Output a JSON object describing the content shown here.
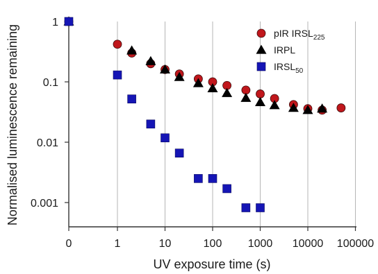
{
  "chart_data": {
    "type": "scatter",
    "xlabel": "UV exposure time (s)",
    "ylabel": "Normalised luminescence remaining",
    "x_scale": "log (with 0 shown at left edge)",
    "y_scale": "log",
    "xlim": [
      0,
      100000
    ],
    "ylim": [
      0.0001,
      1
    ],
    "x_tick_labels": [
      "0",
      "1",
      "10",
      "100",
      "1000",
      "10000",
      "100000"
    ],
    "y_tick_labels": [
      "1",
      "0.1",
      "0.01",
      "0.001"
    ],
    "grid": "vertical gridlines at x ticks",
    "legend_position": "top-right",
    "series": [
      {
        "name": "pIR IRSL225",
        "legend_main": "pIR IRSL",
        "legend_sub": "225",
        "marker": "circle",
        "color": "#c0171c",
        "points": [
          {
            "x": 0,
            "y": 1.0
          },
          {
            "x": 1,
            "y": 0.42
          },
          {
            "x": 2,
            "y": 0.3
          },
          {
            "x": 5,
            "y": 0.2
          },
          {
            "x": 10,
            "y": 0.16
          },
          {
            "x": 20,
            "y": 0.135
          },
          {
            "x": 50,
            "y": 0.112
          },
          {
            "x": 100,
            "y": 0.1
          },
          {
            "x": 200,
            "y": 0.087
          },
          {
            "x": 500,
            "y": 0.073
          },
          {
            "x": 1000,
            "y": 0.063
          },
          {
            "x": 2000,
            "y": 0.053
          },
          {
            "x": 5000,
            "y": 0.042
          },
          {
            "x": 10000,
            "y": 0.036
          },
          {
            "x": 20000,
            "y": 0.034
          },
          {
            "x": 50000,
            "y": 0.037
          }
        ]
      },
      {
        "name": "IRPL",
        "legend_main": "IRPL",
        "legend_sub": "",
        "marker": "triangle",
        "color": "#000000",
        "points": [
          {
            "x": 0,
            "y": 1.0
          },
          {
            "x": 2,
            "y": 0.33
          },
          {
            "x": 5,
            "y": 0.22
          },
          {
            "x": 10,
            "y": 0.16
          },
          {
            "x": 20,
            "y": 0.12
          },
          {
            "x": 50,
            "y": 0.095
          },
          {
            "x": 100,
            "y": 0.078
          },
          {
            "x": 200,
            "y": 0.065
          },
          {
            "x": 500,
            "y": 0.054
          },
          {
            "x": 1000,
            "y": 0.046
          },
          {
            "x": 2000,
            "y": 0.041
          },
          {
            "x": 5000,
            "y": 0.037
          },
          {
            "x": 10000,
            "y": 0.034
          },
          {
            "x": 20000,
            "y": 0.036
          }
        ]
      },
      {
        "name": "IRSL50",
        "legend_main": "IRSL",
        "legend_sub": "50",
        "marker": "square",
        "color": "#1515b5",
        "points": [
          {
            "x": 0,
            "y": 1.0
          },
          {
            "x": 1,
            "y": 0.13
          },
          {
            "x": 2,
            "y": 0.052
          },
          {
            "x": 5,
            "y": 0.02
          },
          {
            "x": 10,
            "y": 0.0118
          },
          {
            "x": 20,
            "y": 0.0066
          },
          {
            "x": 50,
            "y": 0.0025
          },
          {
            "x": 100,
            "y": 0.0025
          },
          {
            "x": 200,
            "y": 0.0017
          },
          {
            "x": 500,
            "y": 0.00082
          },
          {
            "x": 1000,
            "y": 0.00082
          }
        ]
      }
    ]
  }
}
